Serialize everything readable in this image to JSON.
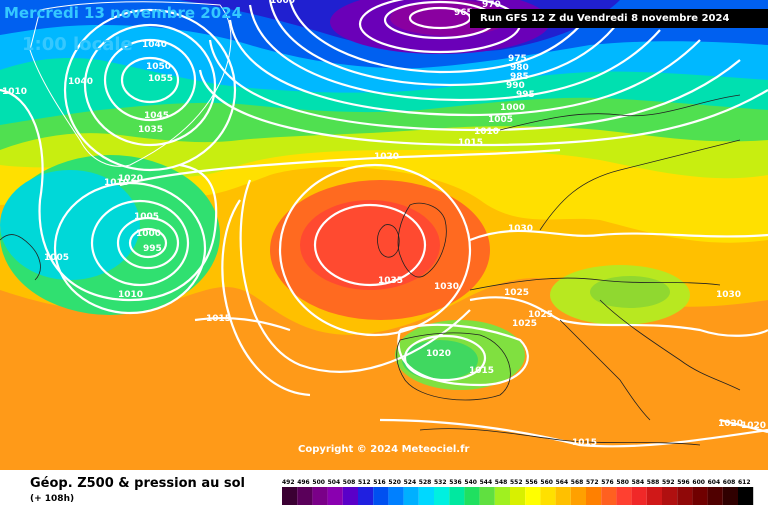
{
  "header": {
    "date": "Mercredi 13 novembre 2024",
    "time": "1:00 locale",
    "run": "Run GFS 12 Z du Vendredi 8 novembre 2024"
  },
  "copyright": "Copyright © 2024 Meteociel.fr",
  "footer": {
    "title": "Géop. Z500 & pression au sol",
    "subtitle": "(+ 108h)"
  },
  "legend": {
    "values": [
      "492",
      "496",
      "500",
      "504",
      "508",
      "512",
      "516",
      "520",
      "524",
      "528",
      "532",
      "536",
      "540",
      "544",
      "548",
      "552",
      "556",
      "560",
      "564",
      "568",
      "572",
      "576",
      "580",
      "584",
      "588",
      "592",
      "596",
      "600",
      "604",
      "608",
      "612"
    ],
    "colors": [
      "#3b0033",
      "#5a005a",
      "#7a0088",
      "#8a00b0",
      "#5a00c8",
      "#2020e0",
      "#0050f0",
      "#0080ff",
      "#00b0ff",
      "#00d8ff",
      "#00f0e0",
      "#00e8a0",
      "#20e060",
      "#60e040",
      "#a0f020",
      "#d8f000",
      "#ffff00",
      "#ffe000",
      "#ffc000",
      "#ffa000",
      "#ff8000",
      "#ff6020",
      "#ff4030",
      "#f02828",
      "#d01818",
      "#b01010",
      "#900808",
      "#700000",
      "#500000",
      "#300000",
      "#000000"
    ]
  },
  "isobars": [
    {
      "label": "1000"
    },
    {
      "label": "970"
    },
    {
      "label": "965"
    },
    {
      "label": "975"
    },
    {
      "label": "980"
    },
    {
      "label": "985"
    },
    {
      "label": "990"
    },
    {
      "label": "995"
    },
    {
      "label": "1000"
    },
    {
      "label": "1005"
    },
    {
      "label": "1010"
    },
    {
      "label": "1015"
    },
    {
      "label": "1020"
    },
    {
      "label": "1040"
    },
    {
      "label": "1050"
    },
    {
      "label": "1055"
    },
    {
      "label": "1040"
    },
    {
      "label": "1010"
    },
    {
      "label": "1045"
    },
    {
      "label": "1035"
    },
    {
      "label": "1020"
    },
    {
      "label": "1010"
    },
    {
      "label": "1005"
    },
    {
      "label": "1000"
    },
    {
      "label": "995"
    },
    {
      "label": "1005"
    },
    {
      "label": "1010"
    },
    {
      "label": "1015"
    },
    {
      "label": "1035"
    },
    {
      "label": "1030"
    },
    {
      "label": "1030"
    },
    {
      "label": "1025"
    },
    {
      "label": "1025"
    },
    {
      "label": "1025"
    },
    {
      "label": "1020"
    },
    {
      "label": "1015"
    },
    {
      "label": "1030"
    },
    {
      "label": "1015"
    },
    {
      "label": "1020"
    },
    {
      "label": "1020"
    }
  ],
  "colors": {
    "accent": "#35c8ff",
    "isobar": "#ffffff"
  }
}
